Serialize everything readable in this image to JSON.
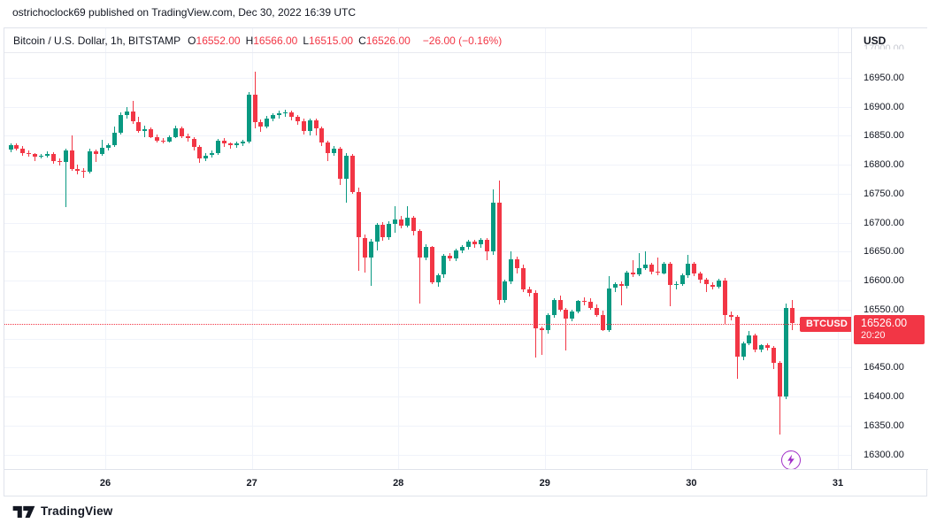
{
  "header": {
    "attribution": "ostrichoclock69 published on TradingView.com, Dec 30, 2022 16:39 UTC"
  },
  "legend": {
    "symbol_title": "Bitcoin / U.S. Dollar, 1h, BITSTAMP",
    "ohlc": [
      {
        "label": "O",
        "value": "16552.00"
      },
      {
        "label": "H",
        "value": "16566.00"
      },
      {
        "label": "L",
        "value": "16515.00"
      },
      {
        "label": "C",
        "value": "16526.00"
      }
    ],
    "change": "−26.00 (−0.16%)"
  },
  "price_axis": {
    "currency": "USD",
    "top_faded_label": {
      "label": "17000.00",
      "price": 17000
    },
    "ticks": [
      {
        "label": "16950.00",
        "price": 16950
      },
      {
        "label": "16900.00",
        "price": 16900
      },
      {
        "label": "16850.00",
        "price": 16850
      },
      {
        "label": "16800.00",
        "price": 16800
      },
      {
        "label": "16750.00",
        "price": 16750
      },
      {
        "label": "16700.00",
        "price": 16700
      },
      {
        "label": "16650.00",
        "price": 16650
      },
      {
        "label": "16600.00",
        "price": 16600
      },
      {
        "label": "16550.00",
        "price": 16550
      },
      {
        "label": "16450.00",
        "price": 16450
      },
      {
        "label": "16400.00",
        "price": 16400
      },
      {
        "label": "16350.00",
        "price": 16350
      },
      {
        "label": "16300.00",
        "price": 16300
      }
    ]
  },
  "price_line": {
    "symbol_tag": "BTCUSD",
    "price": "16526.00",
    "countdown": "20:20",
    "value": 16526
  },
  "footer": {
    "logo_text": "TradingView"
  },
  "colors": {
    "up": "#089981",
    "down": "#f23645",
    "grid": "#f0f3fa",
    "border": "#e0e3eb",
    "text": "#131722",
    "accent_red": "#f23645",
    "marker_purple": "#a02ec7",
    "muted": "#c4c7cf"
  },
  "chart_data": {
    "type": "candlestick",
    "title": "Bitcoin / U.S. Dollar",
    "symbol": "BTCUSD",
    "exchange": "BITSTAMP",
    "interval": "1h",
    "quote_currency": "USD",
    "start_time": "Dec 25 2022 08:00 UTC",
    "end_time": "Dec 30 2022 16:00 UTC",
    "last_ohlc": {
      "o": 16552.0,
      "h": 16566.0,
      "l": 16515.0,
      "c": 16526.0,
      "change": -26.0,
      "change_pct": -0.16
    },
    "y_axis": {
      "min": 16300,
      "max": 17000,
      "step": 50
    },
    "grid_prices": [
      16950,
      16900,
      16850,
      16800,
      16750,
      16700,
      16650,
      16600,
      16550,
      16500,
      16450,
      16400,
      16350,
      16300
    ],
    "day_ticks": [
      {
        "label": "26",
        "candle_index": 16
      },
      {
        "label": "27",
        "candle_index": 40
      },
      {
        "label": "28",
        "candle_index": 64
      },
      {
        "label": "29",
        "candle_index": 88
      },
      {
        "label": "30",
        "candle_index": 112
      },
      {
        "label": "31",
        "candle_index": 136
      }
    ],
    "candles": [
      [
        16826,
        16836,
        16822,
        16833
      ],
      [
        16833,
        16836,
        16824,
        16828
      ],
      [
        16828,
        16832,
        16816,
        16820
      ],
      [
        16820,
        16824,
        16813,
        16818
      ],
      [
        16818,
        16820,
        16806,
        16814
      ],
      [
        16814,
        16819,
        16810,
        16816
      ],
      [
        16816,
        16823,
        16812,
        16819
      ],
      [
        16819,
        16822,
        16801,
        16806
      ],
      [
        16806,
        16810,
        16798,
        16804
      ],
      [
        16804,
        16828,
        16727,
        16824
      ],
      [
        16824,
        16851,
        16790,
        16793
      ],
      [
        16793,
        16800,
        16783,
        16790
      ],
      [
        16790,
        16794,
        16777,
        16788
      ],
      [
        16788,
        16827,
        16785,
        16823
      ],
      [
        16823,
        16826,
        16805,
        16818
      ],
      [
        16818,
        16843,
        16815,
        16829
      ],
      [
        16829,
        16837,
        16824,
        16833
      ],
      [
        16833,
        16866,
        16830,
        16855
      ],
      [
        16855,
        16890,
        16852,
        16886
      ],
      [
        16886,
        16900,
        16880,
        16892
      ],
      [
        16892,
        16910,
        16871,
        16874
      ],
      [
        16874,
        16883,
        16855,
        16858
      ],
      [
        16858,
        16868,
        16847,
        16861
      ],
      [
        16861,
        16864,
        16845,
        16848
      ],
      [
        16848,
        16852,
        16838,
        16841
      ],
      [
        16841,
        16846,
        16836,
        16840
      ],
      [
        16840,
        16851,
        16838,
        16848
      ],
      [
        16848,
        16867,
        16845,
        16862
      ],
      [
        16862,
        16865,
        16846,
        16849
      ],
      [
        16849,
        16853,
        16840,
        16845
      ],
      [
        16845,
        16848,
        16825,
        16830
      ],
      [
        16830,
        16833,
        16803,
        16810
      ],
      [
        16810,
        16820,
        16806,
        16816
      ],
      [
        16816,
        16824,
        16812,
        16820
      ],
      [
        16820,
        16845,
        16817,
        16842
      ],
      [
        16842,
        16846,
        16830,
        16836
      ],
      [
        16836,
        16839,
        16827,
        16833
      ],
      [
        16833,
        16840,
        16829,
        16837
      ],
      [
        16837,
        16843,
        16832,
        16840
      ],
      [
        16840,
        16926,
        16837,
        16920
      ],
      [
        16920,
        16961,
        16862,
        16873
      ],
      [
        16873,
        16878,
        16857,
        16866
      ],
      [
        16866,
        16884,
        16862,
        16880
      ],
      [
        16880,
        16889,
        16875,
        16885
      ],
      [
        16885,
        16893,
        16880,
        16888
      ],
      [
        16888,
        16895,
        16883,
        16890
      ],
      [
        16890,
        16893,
        16877,
        16882
      ],
      [
        16882,
        16886,
        16869,
        16875
      ],
      [
        16875,
        16879,
        16852,
        16858
      ],
      [
        16858,
        16879,
        16850,
        16876
      ],
      [
        16876,
        16880,
        16851,
        16862
      ],
      [
        16862,
        16866,
        16832,
        16838
      ],
      [
        16838,
        16841,
        16806,
        16820
      ],
      [
        16820,
        16832,
        16815,
        16828
      ],
      [
        16828,
        16831,
        16765,
        16776
      ],
      [
        16776,
        16820,
        16735,
        16816
      ],
      [
        16816,
        16818,
        16750,
        16752
      ],
      [
        16752,
        16760,
        16617,
        16674
      ],
      [
        16674,
        16680,
        16614,
        16640
      ],
      [
        16640,
        16672,
        16590,
        16668
      ],
      [
        16668,
        16700,
        16652,
        16697
      ],
      [
        16697,
        16701,
        16668,
        16675
      ],
      [
        16675,
        16702,
        16670,
        16698
      ],
      [
        16698,
        16728,
        16682,
        16705
      ],
      [
        16705,
        16712,
        16690,
        16695
      ],
      [
        16695,
        16728,
        16692,
        16708
      ],
      [
        16708,
        16711,
        16678,
        16685
      ],
      [
        16685,
        16688,
        16561,
        16640
      ],
      [
        16640,
        16662,
        16635,
        16658
      ],
      [
        16658,
        16660,
        16594,
        16597
      ],
      [
        16597,
        16613,
        16590,
        16610
      ],
      [
        16610,
        16646,
        16605,
        16643
      ],
      [
        16643,
        16648,
        16633,
        16638
      ],
      [
        16638,
        16655,
        16634,
        16652
      ],
      [
        16652,
        16661,
        16648,
        16658
      ],
      [
        16658,
        16671,
        16653,
        16668
      ],
      [
        16668,
        16671,
        16656,
        16662
      ],
      [
        16662,
        16673,
        16657,
        16670
      ],
      [
        16670,
        16674,
        16635,
        16650
      ],
      [
        16650,
        16757,
        16645,
        16735
      ],
      [
        16735,
        16773,
        16559,
        16566
      ],
      [
        16566,
        16601,
        16562,
        16598
      ],
      [
        16598,
        16651,
        16594,
        16637
      ],
      [
        16637,
        16642,
        16612,
        16622
      ],
      [
        16622,
        16628,
        16580,
        16585
      ],
      [
        16585,
        16590,
        16572,
        16579
      ],
      [
        16579,
        16584,
        16467,
        16518
      ],
      [
        16518,
        16521,
        16472,
        16515
      ],
      [
        16515,
        16543,
        16508,
        16540
      ],
      [
        16540,
        16570,
        16536,
        16566
      ],
      [
        16566,
        16574,
        16546,
        16550
      ],
      [
        16550,
        16553,
        16480,
        16535
      ],
      [
        16535,
        16550,
        16530,
        16547
      ],
      [
        16547,
        16567,
        16543,
        16565
      ],
      [
        16565,
        16571,
        16557,
        16563
      ],
      [
        16563,
        16570,
        16549,
        16553
      ],
      [
        16553,
        16559,
        16537,
        16541
      ],
      [
        16541,
        16548,
        16513,
        16515
      ],
      [
        16515,
        16607,
        16512,
        16587
      ],
      [
        16587,
        16597,
        16580,
        16594
      ],
      [
        16594,
        16598,
        16557,
        16590
      ],
      [
        16590,
        16617,
        16586,
        16614
      ],
      [
        16614,
        16635,
        16606,
        16610
      ],
      [
        16610,
        16647,
        16607,
        16622
      ],
      [
        16622,
        16650,
        16618,
        16627
      ],
      [
        16627,
        16631,
        16611,
        16615
      ],
      [
        16615,
        16640,
        16609,
        16613
      ],
      [
        16613,
        16632,
        16610,
        16629
      ],
      [
        16629,
        16632,
        16556,
        16592
      ],
      [
        16592,
        16598,
        16585,
        16594
      ],
      [
        16594,
        16612,
        16590,
        16609
      ],
      [
        16609,
        16645,
        16605,
        16629
      ],
      [
        16629,
        16632,
        16608,
        16612
      ],
      [
        16612,
        16616,
        16596,
        16601
      ],
      [
        16601,
        16605,
        16580,
        16593
      ],
      [
        16593,
        16597,
        16585,
        16590
      ],
      [
        16590,
        16603,
        16587,
        16600
      ],
      [
        16600,
        16604,
        16523,
        16540
      ],
      [
        16540,
        16546,
        16532,
        16538
      ],
      [
        16538,
        16541,
        16431,
        16469
      ],
      [
        16469,
        16495,
        16462,
        16492
      ],
      [
        16492,
        16513,
        16488,
        16505
      ],
      [
        16505,
        16508,
        16477,
        16481
      ],
      [
        16481,
        16490,
        16476,
        16488
      ],
      [
        16488,
        16491,
        16479,
        16484
      ],
      [
        16484,
        16487,
        16448,
        16458
      ],
      [
        16458,
        16461,
        16335,
        16400
      ],
      [
        16400,
        16561,
        16396,
        16552
      ],
      [
        16552,
        16566,
        16515,
        16526
      ]
    ]
  }
}
